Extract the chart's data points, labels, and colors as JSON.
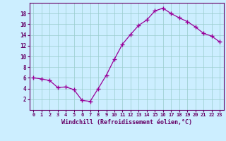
{
  "hours": [
    0,
    1,
    2,
    3,
    4,
    5,
    6,
    7,
    8,
    9,
    10,
    11,
    12,
    13,
    14,
    15,
    16,
    17,
    18,
    19,
    20,
    21,
    22,
    23
  ],
  "values": [
    6,
    5.8,
    5.5,
    4.2,
    4.3,
    3.8,
    1.8,
    1.6,
    4.0,
    6.5,
    9.5,
    12.3,
    14.1,
    15.8,
    16.8,
    18.5,
    19.0,
    18.0,
    17.2,
    16.5,
    15.5,
    14.3,
    13.8,
    12.7
  ],
  "line_color": "#990099",
  "marker": "+",
  "marker_size": 4,
  "xlabel": "Windchill (Refroidissement éolien,°C)",
  "xlabel_color": "#660066",
  "background_color": "#cceeff",
  "grid_color": "#99cccc",
  "tick_color": "#660066",
  "axis_color": "#660066",
  "ylim": [
    0,
    20
  ],
  "yticks": [
    2,
    4,
    6,
    8,
    10,
    12,
    14,
    16,
    18
  ],
  "figsize": [
    3.2,
    2.0
  ],
  "dpi": 100
}
